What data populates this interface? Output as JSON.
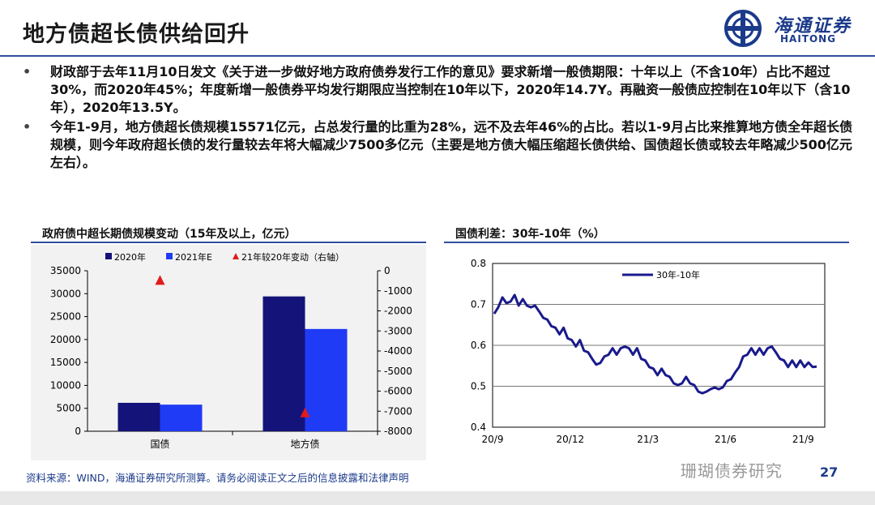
{
  "header": {
    "title": "地方债超长债供给回升",
    "logo_cn": "海通证券",
    "logo_en": "HAITONG"
  },
  "bullets": [
    {
      "marker": "•",
      "text": "财政部于去年11月10日发文《关于进一步做好地方政府债券发行工作的意见》要求新增一般债期限：十年以上（不含10年）占比不超过30%，而2020年45%；年度新增一般债券平均发行期限应当控制在10年以下，2020年14.7Y。再融资一般债应控制在10年以下（含10年），2020年13.5Y。"
    },
    {
      "marker": "•",
      "text": "今年1-9月，地方债超长债规模15571亿元，占总发行量的比重为28%，远不及去年46%的占比。若以1-9月占比来推算地方债全年超长债规模，则今年政府超长债的发行量较去年将大幅减少7500多亿元（主要是地方债大幅压缩超长债供给、国债超长债或较去年略减少500亿元左右）。"
    }
  ],
  "left_panel": {
    "title": "政府债中超长期债规模变动（15年及以上，亿元）"
  },
  "right_panel": {
    "title": "国债利差：30年-10年（%）"
  },
  "footer": {
    "source": "资料来源：WIND，海通证券研究所测算。请务必阅读正文之后的信息披露和法律声明",
    "watermark": "珊瑚债券研究",
    "page": "27"
  },
  "chart_data": [
    {
      "type": "bar",
      "categories": [
        "国债",
        "地方债"
      ],
      "series": [
        {
          "name": "2020年",
          "values": [
            6200,
            29400
          ],
          "color": "#13137a",
          "axis": "left"
        },
        {
          "name": "2021年E",
          "values": [
            5800,
            22300
          ],
          "color": "#1f3bf5",
          "axis": "left"
        },
        {
          "name": "21年较20年变动（右轴）",
          "values": [
            -500,
            -7100
          ],
          "color": "#e11b1b",
          "axis": "right",
          "marker": "triangle"
        }
      ],
      "ylim": [
        0,
        35000
      ],
      "yticks": [
        0,
        5000,
        10000,
        15000,
        20000,
        25000,
        30000,
        35000
      ],
      "y2lim": [
        -8000,
        0
      ],
      "y2ticks": [
        0,
        -1000,
        -2000,
        -3000,
        -4000,
        -5000,
        -6000,
        -7000,
        -8000
      ],
      "legend": "top"
    },
    {
      "type": "line",
      "series": [
        {
          "name": "30年-10年",
          "color": "#1a1a8c",
          "values": [
            0.68,
            0.69,
            0.72,
            0.7,
            0.71,
            0.72,
            0.7,
            0.71,
            0.7,
            0.69,
            0.7,
            0.68,
            0.67,
            0.66,
            0.65,
            0.64,
            0.63,
            0.64,
            0.62,
            0.61,
            0.6,
            0.61,
            0.59,
            0.58,
            0.57,
            0.55,
            0.56,
            0.57,
            0.58,
            0.59,
            0.58,
            0.59,
            0.6,
            0.59,
            0.58,
            0.59,
            0.57,
            0.56,
            0.55,
            0.54,
            0.53,
            0.54,
            0.53,
            0.52,
            0.51,
            0.5,
            0.51,
            0.52,
            0.51,
            0.5,
            0.49,
            0.48,
            0.49,
            0.49,
            0.5,
            0.49,
            0.5,
            0.51,
            0.52,
            0.53,
            0.55,
            0.57,
            0.58,
            0.59,
            0.58,
            0.59,
            0.58,
            0.59,
            0.6,
            0.58,
            0.57,
            0.56,
            0.55,
            0.56,
            0.55,
            0.56,
            0.55,
            0.555,
            0.55,
            0.545
          ]
        }
      ],
      "x_tick_labels": [
        "20/9",
        "20/12",
        "21/3",
        "21/6",
        "21/9"
      ],
      "ylim": [
        0.4,
        0.8
      ],
      "yticks": [
        0.4,
        0.5,
        0.6,
        0.7,
        0.8
      ],
      "grid": "horizontal",
      "legend": "top-left"
    }
  ]
}
